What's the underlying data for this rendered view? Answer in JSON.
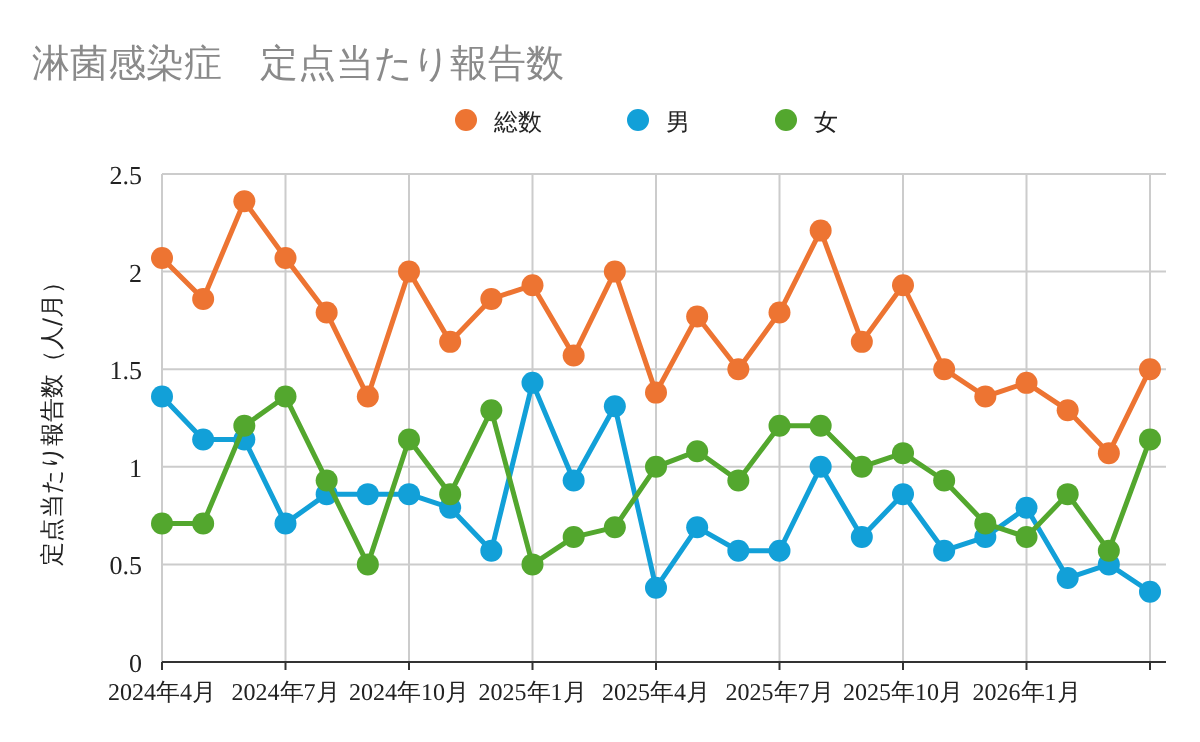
{
  "chart_data": {
    "type": "line",
    "title": "淋菌感染症　定点当たり報告数",
    "ylabel": "定点当たり報告数（人/月）",
    "x": [
      "2024-04",
      "2024-05",
      "2024-06",
      "2024-07",
      "2024-08",
      "2024-09",
      "2024-10",
      "2024-11",
      "2024-12",
      "2025-01",
      "2025-02",
      "2025-03",
      "2025-04",
      "2025-05",
      "2025-06",
      "2025-07",
      "2025-08",
      "2025-09",
      "2025-10",
      "2025-11",
      "2025-12",
      "2026-01",
      "2026-02",
      "2026-03",
      "2026-04"
    ],
    "xlim": [
      "2024-04",
      "2026-04"
    ],
    "xticks": [
      {
        "value": "2024-04",
        "label": "2024年4月"
      },
      {
        "value": "2024-07",
        "label": "2024年7月"
      },
      {
        "value": "2024-10",
        "label": "2024年10月"
      },
      {
        "value": "2025-01",
        "label": "2025年1月"
      },
      {
        "value": "2025-04",
        "label": "2025年4月"
      },
      {
        "value": "2025-07",
        "label": "2025年7月"
      },
      {
        "value": "2025-10",
        "label": "2025年10月"
      },
      {
        "value": "2026-01",
        "label": "2026年1月"
      },
      {
        "value": "2026-04",
        "label": null
      }
    ],
    "ylim": [
      0,
      2.5
    ],
    "yticks": [
      0,
      0.5,
      1,
      1.5,
      2,
      2.5
    ],
    "grid": true,
    "legend": "top",
    "marker": "circle",
    "series": [
      {
        "name": "総数",
        "color": "#ed7432",
        "values": [
          2.07,
          1.86,
          2.36,
          2.07,
          1.79,
          1.36,
          2.0,
          1.64,
          1.86,
          1.93,
          1.57,
          2.0,
          1.38,
          1.77,
          1.5,
          1.79,
          2.21,
          1.64,
          1.93,
          1.5,
          1.36,
          1.43,
          1.29,
          1.07,
          1.5
        ]
      },
      {
        "name": "男",
        "color": "#12a0d8",
        "values": [
          1.36,
          1.14,
          1.14,
          0.71,
          0.86,
          0.86,
          0.86,
          0.79,
          0.57,
          1.43,
          0.93,
          1.31,
          0.38,
          0.69,
          0.57,
          0.57,
          1.0,
          0.64,
          0.86,
          0.57,
          0.64,
          0.79,
          0.43,
          0.5,
          0.36
        ]
      },
      {
        "name": "女",
        "color": "#53a72e",
        "values": [
          0.71,
          0.71,
          1.21,
          1.36,
          0.93,
          0.5,
          1.14,
          0.86,
          1.29,
          0.5,
          0.64,
          0.69,
          1.0,
          1.08,
          0.93,
          1.21,
          1.21,
          1.0,
          1.07,
          0.93,
          0.71,
          0.64,
          0.86,
          0.57,
          1.14
        ]
      }
    ]
  }
}
